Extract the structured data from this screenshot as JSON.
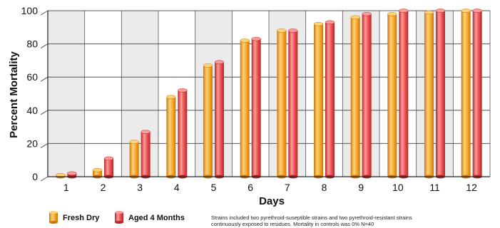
{
  "chart_data": {
    "type": "bar",
    "title": "",
    "xlabel": "Days",
    "ylabel": "Percent Mortality",
    "ylim": [
      0,
      100
    ],
    "yticks": [
      0,
      20,
      40,
      60,
      80,
      100
    ],
    "categories": [
      "1",
      "2",
      "3",
      "4",
      "5",
      "6",
      "7",
      "8",
      "9",
      "10",
      "11",
      "12"
    ],
    "series": [
      {
        "name": "Fresh Dry",
        "values": [
          1,
          4,
          21,
          48,
          67,
          82,
          88,
          92,
          96,
          98,
          99,
          100
        ]
      },
      {
        "name": "Aged 4 Months",
        "values": [
          2,
          11,
          27,
          52,
          69,
          83,
          88,
          93,
          98,
          100,
          100,
          100
        ]
      }
    ],
    "grid": true,
    "legend_position": "bottom-left",
    "colors": {
      "fresh_light": "#ffd27a",
      "fresh_mid": "#f5a623",
      "fresh_dark": "#c9770a",
      "aged_light": "#ff9a9a",
      "aged_mid": "#e94b4b",
      "aged_dark": "#b22a2a",
      "band": "#ebebeb",
      "grid": "#555555"
    }
  },
  "note": {
    "line1": "Strains included two pyrethroid-suseptible strains and two pyrethroid-resistant strains",
    "line2": "continuously exposed to residues. Mortality in controls was 0%   N=40"
  }
}
